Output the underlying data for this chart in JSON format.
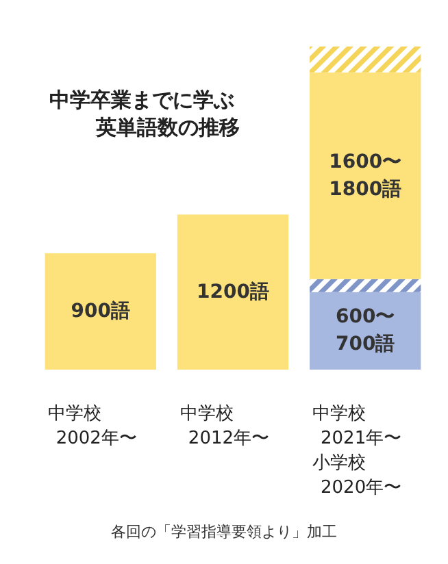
{
  "chart_data": {
    "type": "bar",
    "title": "中学卒業までに学ぶ英単語数の推移",
    "categories": [
      "中学校2002年〜",
      "中学校2012年〜",
      "中学校2021年〜小学校2020年〜"
    ],
    "stacked": true,
    "tick_labels": "x",
    "series": [
      {
        "color": "#a6b7e0",
        "values": [
          null,
          null,
          600
        ],
        "value_labels": [
          null,
          null,
          "600〜700語"
        ]
      },
      {
        "color": "#7f95c8",
        "values": [
          null,
          null,
          100
        ]
      },
      {
        "color": "#fde27c",
        "values": [
          900,
          1200,
          1600
        ],
        "value_labels": [
          "900語",
          "1200語",
          "1600〜1800語"
        ]
      },
      {
        "color": "#f5d45a",
        "values": [
          null,
          null,
          200
        ]
      }
    ],
    "annotations": [
      "各回の「学習指導要領より」加工"
    ]
  }
}
